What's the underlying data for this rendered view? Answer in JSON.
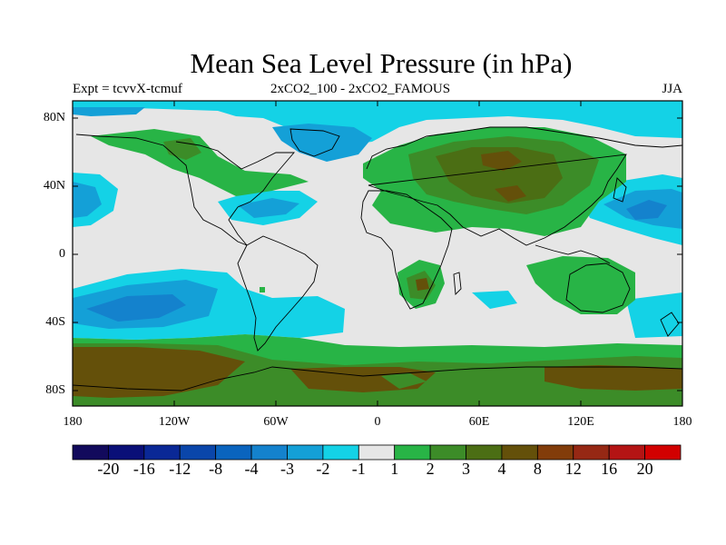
{
  "title": "Mean Sea Level Pressure (in hPa)",
  "subtitle_left": "Expt = tcvvX-tcmuf",
  "subtitle_center": "2xCO2_100 - 2xCO2_FAMOUS",
  "subtitle_right": "JJA",
  "lat_ticks": [
    "80N",
    "40N",
    "0",
    "40S",
    "80S"
  ],
  "lon_ticks": [
    "180",
    "120W",
    "60W",
    "0",
    "60E",
    "120E",
    "180"
  ],
  "colorbar": {
    "levels": [
      "-20",
      "-16",
      "-12",
      "-8",
      "-4",
      "-3",
      "-2",
      "-1",
      "1",
      "2",
      "3",
      "4",
      "8",
      "12",
      "16",
      "20"
    ],
    "colors": [
      "#120a5c",
      "#0a0f78",
      "#0a2896",
      "#0a46aa",
      "#0a64be",
      "#1482cd",
      "#14a0d7",
      "#14d2e6",
      "#e6e6e6",
      "#28b446",
      "#3c8c28",
      "#4b6e14",
      "#64500a",
      "#823c0a",
      "#962814",
      "#b41414",
      "#d20000"
    ]
  },
  "colors": {
    "background_neutral": "#e6e6e6",
    "pos_1_2": "#28b446",
    "pos_2_3": "#3c8c28",
    "pos_3_4": "#4b6e14",
    "pos_4_8": "#64500a",
    "neg_1_2": "#14d2e6",
    "neg_2_3": "#14a0d7",
    "neg_3_4": "#1482cd"
  }
}
